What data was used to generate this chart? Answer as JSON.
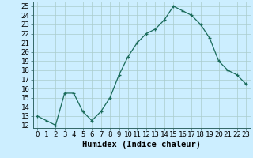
{
  "x": [
    0,
    1,
    2,
    3,
    4,
    5,
    6,
    7,
    8,
    9,
    10,
    11,
    12,
    13,
    14,
    15,
    16,
    17,
    18,
    19,
    20,
    21,
    22,
    23
  ],
  "y": [
    13.0,
    12.5,
    12.0,
    15.5,
    15.5,
    13.5,
    12.5,
    13.5,
    15.0,
    17.5,
    19.5,
    21.0,
    22.0,
    22.5,
    23.5,
    25.0,
    24.5,
    24.0,
    23.0,
    21.5,
    19.0,
    18.0,
    17.5,
    16.5
  ],
  "line_color": "#1a6b5a",
  "marker": "+",
  "bg_color": "#cceeff",
  "grid_color": "#aacccc",
  "xlabel": "Humidex (Indice chaleur)",
  "ylabel_ticks": [
    12,
    13,
    14,
    15,
    16,
    17,
    18,
    19,
    20,
    21,
    22,
    23,
    24,
    25
  ],
  "ylim": [
    11.7,
    25.5
  ],
  "xlim": [
    -0.5,
    23.5
  ],
  "xticks": [
    0,
    1,
    2,
    3,
    4,
    5,
    6,
    7,
    8,
    9,
    10,
    11,
    12,
    13,
    14,
    15,
    16,
    17,
    18,
    19,
    20,
    21,
    22,
    23
  ],
  "label_fontsize": 7.5,
  "tick_fontsize": 6.5
}
